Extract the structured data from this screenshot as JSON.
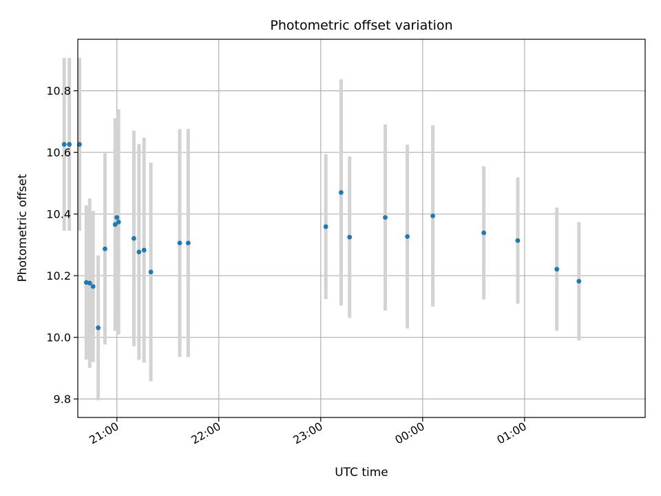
{
  "chart_data": {
    "type": "scatter",
    "title": "Photometric offset variation",
    "xlabel": "UTC time",
    "ylabel": "Photometric offset",
    "x_reference_date": "",
    "xlim": [
      "20:37",
      "26:11"
    ],
    "ylim": [
      9.74,
      10.967
    ],
    "x_ticks": [
      {
        "time": "21:00",
        "label": "21:00"
      },
      {
        "time": "22:00",
        "label": "22:00"
      },
      {
        "time": "23:00",
        "label": "23:00"
      },
      {
        "time": "24:00",
        "label": "00:00"
      },
      {
        "time": "25:00",
        "label": "01:00"
      }
    ],
    "y_ticks": [
      9.8,
      10.0,
      10.2,
      10.4,
      10.6,
      10.8
    ],
    "grid": true,
    "colors": {
      "marker": "#1f77b4",
      "errorbar": "#d3d3d3",
      "grid": "#b0b0b0"
    },
    "points": [
      {
        "time": "20:29",
        "y": 10.626,
        "err": 0.28
      },
      {
        "time": "20:32",
        "y": 10.626,
        "err": 0.28
      },
      {
        "time": "20:38",
        "y": 10.626,
        "err": 0.28
      },
      {
        "time": "20:42",
        "y": 10.178,
        "err": 0.25
      },
      {
        "time": "20:44",
        "y": 10.176,
        "err": 0.275
      },
      {
        "time": "20:46",
        "y": 10.165,
        "err": 0.245
      },
      {
        "time": "20:49",
        "y": 10.031,
        "err": 0.235
      },
      {
        "time": "20:53",
        "y": 10.287,
        "err": 0.31
      },
      {
        "time": "20:59",
        "y": 10.366,
        "err": 0.345
      },
      {
        "time": "21:00",
        "y": 10.389,
        "err": 0.32
      },
      {
        "time": "21:01",
        "y": 10.374,
        "err": 0.365
      },
      {
        "time": "21:10",
        "y": 10.321,
        "err": 0.35
      },
      {
        "time": "21:13",
        "y": 10.277,
        "err": 0.35
      },
      {
        "time": "21:16",
        "y": 10.283,
        "err": 0.365
      },
      {
        "time": "21:20",
        "y": 10.212,
        "err": 0.355
      },
      {
        "time": "21:37",
        "y": 10.306,
        "err": 0.37
      },
      {
        "time": "21:42",
        "y": 10.306,
        "err": 0.37
      },
      {
        "time": "23:03",
        "y": 10.359,
        "err": 0.235
      },
      {
        "time": "23:12",
        "y": 10.47,
        "err": 0.367
      },
      {
        "time": "23:17",
        "y": 10.325,
        "err": 0.262
      },
      {
        "time": "23:38",
        "y": 10.389,
        "err": 0.302
      },
      {
        "time": "23:51",
        "y": 10.327,
        "err": 0.298
      },
      {
        "time": "24:06",
        "y": 10.394,
        "err": 0.294
      },
      {
        "time": "24:36",
        "y": 10.339,
        "err": 0.216
      },
      {
        "time": "24:56",
        "y": 10.314,
        "err": 0.205
      },
      {
        "time": "25:19",
        "y": 10.221,
        "err": 0.2
      },
      {
        "time": "25:32",
        "y": 10.182,
        "err": 0.192
      }
    ]
  }
}
